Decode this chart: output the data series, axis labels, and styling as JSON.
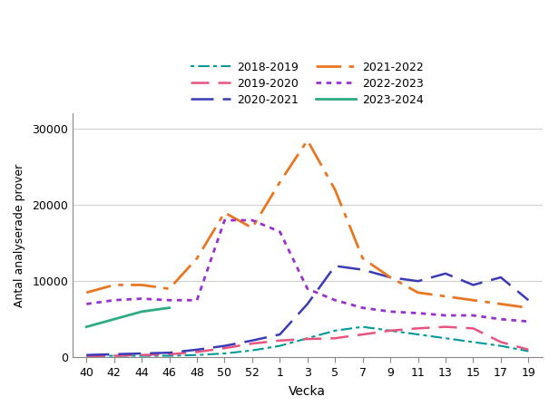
{
  "ylabel": "Antal analyserade prover",
  "xlabel": "Vecka",
  "x_ticks": [
    40,
    42,
    44,
    46,
    48,
    50,
    52,
    1,
    3,
    5,
    7,
    9,
    11,
    13,
    15,
    17,
    19
  ],
  "series_order": [
    "2018-2019",
    "2019-2020",
    "2020-2021",
    "2021-2022",
    "2022-2023",
    "2023-2024"
  ],
  "series": {
    "2018-2019": {
      "color": "#009999",
      "lw": 1.5,
      "ls": [
        2,
        2,
        6,
        2
      ],
      "values": [
        200,
        200,
        200,
        200,
        300,
        500,
        900,
        1500,
        2500,
        3500,
        4000,
        3500,
        3000,
        2500,
        2000,
        1500,
        800
      ]
    },
    "2019-2020": {
      "color": "#e75480",
      "lw": 1.8,
      "ls": [
        8,
        4
      ],
      "values": [
        100,
        200,
        300,
        400,
        700,
        1200,
        1800,
        2200,
        2400,
        2500,
        3000,
        3500,
        3800,
        4000,
        3800,
        2000,
        1000
      ]
    },
    "2020-2021": {
      "color": "#3b3bb5",
      "lw": 1.8,
      "ls": [
        10,
        4
      ],
      "values": [
        300,
        400,
        500,
        600,
        1000,
        1500,
        2200,
        3000,
        7000,
        12000,
        11500,
        10500,
        10000,
        11000,
        9500,
        10500,
        7500
      ]
    },
    "2021-2022": {
      "color": "#e87722",
      "lw": 2.0,
      "ls": [
        10,
        3,
        2,
        3
      ],
      "values": [
        8500,
        9500,
        9500,
        9000,
        13000,
        19000,
        17000,
        23000,
        28500,
        22000,
        13000,
        10500,
        8500,
        8000,
        7500,
        7000,
        6500
      ]
    },
    "2022-2023": {
      "color": "#9932cc",
      "lw": 2.0,
      "ls": [
        2,
        2
      ],
      "values": [
        7000,
        7500,
        7700,
        7500,
        7500,
        18000,
        18000,
        16500,
        9000,
        7500,
        6500,
        6000,
        5800,
        5500,
        5500,
        5000,
        4700
      ]
    },
    "2023-2024": {
      "color": "#2eab81",
      "lw": 2.0,
      "ls": "solid",
      "values": [
        4000,
        5000,
        6000,
        6500,
        null,
        null,
        null,
        null,
        null,
        null,
        null,
        null,
        null,
        null,
        null,
        null,
        null
      ]
    }
  },
  "ylim": [
    0,
    32000
  ],
  "yticks": [
    0,
    10000,
    20000,
    30000
  ],
  "background_color": "#ffffff",
  "grid_color": "#d0d0d0",
  "spine_color": "#888888",
  "legend_order_left": [
    "2018-2019",
    "2020-2021",
    "2022-2023"
  ],
  "legend_order_right": [
    "2019-2020",
    "2021-2022",
    "2023-2024"
  ]
}
